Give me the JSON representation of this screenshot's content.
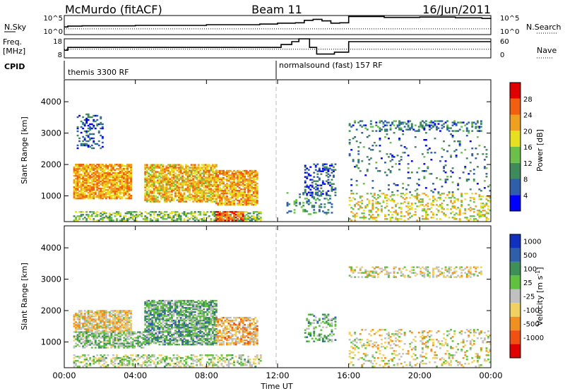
{
  "header": {
    "site": "McMurdo (fitACF)",
    "beam": "Beam 11",
    "date": "16/Jun/2011"
  },
  "summary_panels": {
    "nsky_label": "N.Sky",
    "nsearch_label": "N.Search",
    "freq_label_1": "Freq.",
    "freq_label_2": "[MHz]",
    "nave_label": "Nave",
    "cpid_label": "CPID",
    "left_ticks_top": [
      "10^5",
      "10^0"
    ],
    "right_ticks_top": [
      "10^5",
      "10^0"
    ],
    "left_ticks_freq": [
      "18",
      "8"
    ],
    "right_ticks_nave": [
      "60",
      "0"
    ],
    "cpid_segments": [
      {
        "text": "themis 3300 RF",
        "start_hr": 0
      },
      {
        "text": "normalsound (fast) 157 RF",
        "start_hr": 12
      }
    ]
  },
  "axes": {
    "ylabel": "Slant Range [km]",
    "xlabel": "Time UT",
    "x_tick_labels": [
      "00:00",
      "04:00",
      "08:00",
      "12:00",
      "16:00",
      "20:00",
      "00:00"
    ],
    "y_tick_labels": [
      "1000",
      "2000",
      "3000",
      "4000"
    ]
  },
  "colorbars": {
    "power": {
      "label": "Power [dB]",
      "ticks": [
        "4",
        "8",
        "12",
        "16",
        "20",
        "24",
        "28"
      ],
      "colors": [
        "#0000ff",
        "#2e5fa8",
        "#3f8a5a",
        "#6cc04a",
        "#e6e020",
        "#f0a020",
        "#f06010",
        "#e00000"
      ]
    },
    "velocity": {
      "label_main": "Velocity",
      "label_units": "[m s",
      "label_sup": "-1",
      "label_end": "]",
      "ticks": [
        "1000",
        "500",
        "100",
        "25",
        "-25",
        "-100",
        "-500",
        "-1000"
      ],
      "colors": [
        "#1030c0",
        "#2f5fa8",
        "#3f8f58",
        "#60c040",
        "#c0c0c0",
        "#f0d060",
        "#f09020",
        "#f05010",
        "#e00000"
      ]
    }
  },
  "chart_data": [
    {
      "type": "line",
      "name": "summary-nsky-nsearch",
      "x_range_hr": [
        0,
        24
      ],
      "series": [
        {
          "name": "N.Sky",
          "x": [
            0,
            0.2,
            1,
            4,
            8,
            11,
            12,
            13,
            13.5,
            14,
            14.5,
            15,
            15.5,
            16,
            18,
            20,
            22,
            23.5,
            24
          ],
          "y": [
            0.4,
            0.45,
            0.46,
            0.48,
            0.52,
            0.55,
            0.6,
            0.62,
            0.75,
            0.8,
            0.72,
            0.6,
            0.62,
            0.95,
            0.9,
            0.92,
            0.88,
            0.85,
            0.86
          ]
        },
        {
          "name": "N.Search",
          "x": [
            0,
            24
          ],
          "y": [
            0.3,
            0.3
          ]
        }
      ]
    },
    {
      "type": "line",
      "name": "summary-freq-nave",
      "x_range_hr": [
        0,
        24
      ],
      "series": [
        {
          "name": "Freq",
          "x": [
            0,
            0.2,
            12,
            12.2,
            12.8,
            13.2,
            13.8,
            14.2,
            15.2,
            16,
            24
          ],
          "y": [
            0.4,
            0.55,
            0.55,
            0.7,
            0.85,
            1.0,
            0.55,
            0.2,
            0.3,
            0.85,
            0.85
          ]
        },
        {
          "name": "Nave",
          "x": [
            0,
            24
          ],
          "y": [
            0.45,
            0.45
          ]
        }
      ]
    },
    {
      "type": "heatmap",
      "name": "power",
      "x_range_hr": [
        0,
        24
      ],
      "ylim_km": [
        180,
        4700
      ],
      "clim": [
        0,
        32
      ],
      "blobs": [
        {
          "t0": 0.5,
          "t1": 3.8,
          "r0": 900,
          "r1": 2000,
          "v": 22,
          "d": 0.8
        },
        {
          "t0": 4.5,
          "t1": 8.5,
          "r0": 800,
          "r1": 2000,
          "v": 20,
          "d": 0.75
        },
        {
          "t0": 8.5,
          "t1": 10.8,
          "r0": 700,
          "r1": 1800,
          "v": 22,
          "d": 0.75
        },
        {
          "t0": 0.5,
          "t1": 11,
          "r0": 200,
          "r1": 500,
          "v": 14,
          "d": 0.5
        },
        {
          "t0": 8.5,
          "t1": 10,
          "r0": 200,
          "r1": 500,
          "v": 26,
          "d": 0.8
        },
        {
          "t0": 0.7,
          "t1": 2.2,
          "r0": 2500,
          "r1": 3600,
          "v": 6,
          "d": 0.25
        },
        {
          "t0": 12.5,
          "t1": 15,
          "r0": 400,
          "r1": 1100,
          "v": 10,
          "d": 0.2
        },
        {
          "t0": 13.5,
          "t1": 15.2,
          "r0": 1000,
          "r1": 2000,
          "v": 6,
          "d": 0.3
        },
        {
          "t0": 16,
          "t1": 23.5,
          "r0": 3050,
          "r1": 3400,
          "v": 8,
          "d": 0.35
        },
        {
          "t0": 16,
          "t1": 24,
          "r0": 200,
          "r1": 1100,
          "v": 18,
          "d": 0.25
        },
        {
          "t0": 16,
          "t1": 24,
          "r0": 1100,
          "r1": 3000,
          "v": 8,
          "d": 0.06
        }
      ]
    },
    {
      "type": "heatmap",
      "name": "velocity",
      "x_range_hr": [
        0,
        24
      ],
      "ylim_km": [
        180,
        4700
      ],
      "clim": [
        -1000,
        1000
      ],
      "blobs": [
        {
          "t0": 0.5,
          "t1": 3.8,
          "r0": 1300,
          "r1": 2000,
          "v": -200,
          "d": 0.75
        },
        {
          "t0": 0.5,
          "t1": 4.5,
          "r0": 800,
          "r1": 1300,
          "v": 200,
          "d": 0.6
        },
        {
          "t0": 4.5,
          "t1": 8.5,
          "r0": 900,
          "r1": 2300,
          "v": 300,
          "d": 0.7
        },
        {
          "t0": 8.5,
          "t1": 10.8,
          "r0": 900,
          "r1": 1800,
          "v": -300,
          "d": 0.65
        },
        {
          "t0": 0.5,
          "t1": 11,
          "r0": 200,
          "r1": 600,
          "v": 50,
          "d": 0.4
        },
        {
          "t0": 16,
          "t1": 23.5,
          "r0": 3050,
          "r1": 3400,
          "v": -100,
          "d": 0.35
        },
        {
          "t0": 13.5,
          "t1": 15.2,
          "r0": 1000,
          "r1": 1900,
          "v": 250,
          "d": 0.3
        },
        {
          "t0": 16,
          "t1": 24,
          "r0": 200,
          "r1": 1400,
          "v": -100,
          "d": 0.2
        }
      ]
    }
  ]
}
